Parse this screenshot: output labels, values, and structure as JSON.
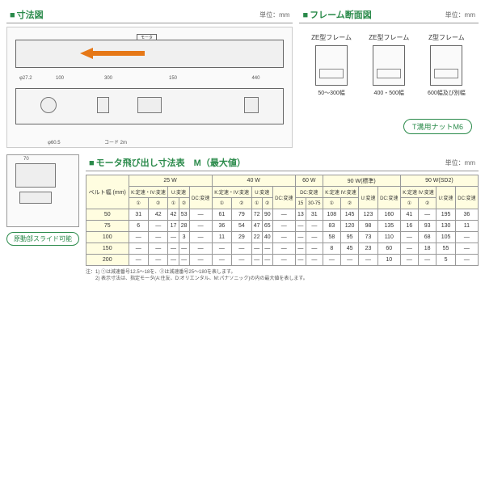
{
  "sections": {
    "dimensions": {
      "title": "寸法図",
      "unit": "単位：mm"
    },
    "frame": {
      "title": "フレーム断面図",
      "unit": "単位：mm"
    },
    "motor_table": {
      "title": "モータ飛び出し寸法表　M（最大値）",
      "unit": "単位：mm"
    }
  },
  "frame_types": [
    {
      "name": "ZE型フレーム",
      "caption": "50～300幅"
    },
    {
      "name": "ZE型フレーム",
      "caption": "400・500幅"
    },
    {
      "name": "Z型フレーム",
      "caption": "600幅及び別幅"
    }
  ],
  "t_nut": "T溝用ナットM6",
  "slide_label": "原動部スライド可能",
  "motor_label": "モータ",
  "table": {
    "belt_header": "ベルト幅\n(mm)",
    "wattages": [
      "25 W",
      "40 W",
      "60 W",
      "90 W(標準)",
      "90 W(SD2)"
    ],
    "sub_headers_25": [
      "K:定速・IV:変速",
      "U:変速",
      "DC:変速"
    ],
    "sub_headers_40": [
      "K:定速・IV:変速",
      "U:変速",
      "DC:変速"
    ],
    "sub_60": [
      "DC:変速"
    ],
    "sub_90a": [
      "K:定速\nIV:変速",
      "U:変速",
      "DC:変速"
    ],
    "sub_90b": [
      "K:定速\nIV:変速",
      "U:変速",
      "DC:変速"
    ],
    "circled": [
      "①",
      "②",
      "①",
      "②",
      "②",
      "①",
      "②",
      "①",
      "②",
      "②",
      "15",
      "30-75"
    ],
    "belt_widths": [
      "50",
      "75",
      "100",
      "150",
      "200"
    ],
    "rows": [
      [
        "31",
        "42",
        "42",
        "53",
        "—",
        "61",
        "79",
        "72",
        "90",
        "—",
        "13",
        "31",
        "108",
        "145",
        "123",
        "160",
        "41",
        "—",
        "195",
        "36"
      ],
      [
        "6",
        "—",
        "17",
        "28",
        "—",
        "36",
        "54",
        "47",
        "65",
        "—",
        "—",
        "—",
        "83",
        "120",
        "98",
        "135",
        "16",
        "93",
        "130",
        "11"
      ],
      [
        "—",
        "—",
        "—",
        "3",
        "—",
        "11",
        "29",
        "22",
        "40",
        "—",
        "—",
        "—",
        "58",
        "95",
        "73",
        "110",
        "—",
        "68",
        "105",
        "—"
      ],
      [
        "—",
        "—",
        "—",
        "—",
        "—",
        "—",
        "—",
        "—",
        "—",
        "—",
        "—",
        "—",
        "8",
        "45",
        "23",
        "60",
        "—",
        "18",
        "55",
        "—"
      ],
      [
        "—",
        "—",
        "—",
        "—",
        "—",
        "—",
        "—",
        "—",
        "—",
        "—",
        "—",
        "—",
        "—",
        "—",
        "—",
        "10",
        "—",
        "—",
        "5",
        "—"
      ]
    ]
  },
  "notes": "注：1) ①は減速番号12.5～18を、②は減速番号25～180を表します。\n　　2) 表示寸法は、指定モータ(A:住友、D:オリエンタル、M:パナソニック)の内の最大値を表します。",
  "colors": {
    "green": "#2a8a4a",
    "orange": "#e67817",
    "th_bg": "#fffde0"
  }
}
